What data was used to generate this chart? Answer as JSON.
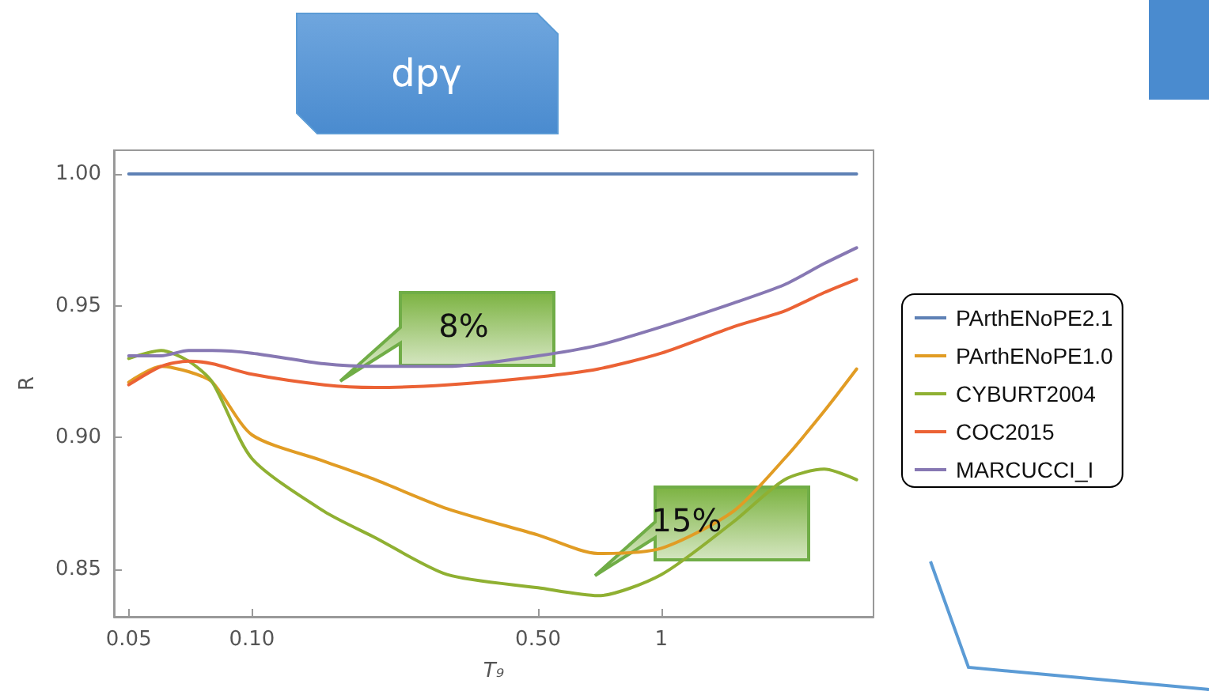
{
  "chart_data": {
    "type": "line",
    "title": "dpγ",
    "xlabel": "T₉",
    "ylabel": "R",
    "log": "x",
    "xlim": [
      0.046,
      3.3
    ],
    "xticks": [
      0.05,
      {
        "value": 0.1,
        "label": "0.10"
      },
      {
        "value": 0.5,
        "label": "0.50"
      },
      1
    ],
    "ylim": [
      0.832,
      1.009
    ],
    "yticks": [
      0.85,
      {
        "value": 0.9,
        "label": "0.90"
      },
      0.95,
      {
        "value": 1,
        "label": "1.00"
      }
    ],
    "x": [
      0.05,
      0.06,
      0.07,
      0.08,
      0.1,
      0.15,
      0.2,
      0.3,
      0.5,
      0.7,
      1,
      1.5,
      2,
      2.5,
      3
    ],
    "series": [
      {
        "name": "PArthENoPE2.1",
        "color": "#5e81b5",
        "values": [
          1,
          1,
          1,
          1,
          1,
          1,
          1,
          1,
          1,
          1,
          1,
          1,
          1,
          1,
          1
        ]
      },
      {
        "name": "PArthENoPE1.0",
        "color": "#e19c24",
        "values": [
          0.921,
          0.927,
          0.925,
          0.921,
          0.901,
          0.891,
          0.884,
          0.873,
          0.863,
          0.856,
          0.858,
          0.872,
          0.892,
          0.91,
          0.926
        ]
      },
      {
        "name": "CYBURT2004",
        "color": "#8fb032",
        "values": [
          0.93,
          0.933,
          0.929,
          0.921,
          0.892,
          0.872,
          0.862,
          0.848,
          0.843,
          0.84,
          0.848,
          0.868,
          0.884,
          0.888,
          0.884
        ]
      },
      {
        "name": "COC2015",
        "color": "#eb6235",
        "values": [
          0.92,
          0.927,
          0.929,
          0.928,
          0.924,
          0.92,
          0.919,
          0.92,
          0.923,
          0.926,
          0.932,
          0.942,
          0.948,
          0.955,
          0.96
        ]
      },
      {
        "name": "MARCUCCI_I",
        "color": "#8778b3",
        "values": [
          0.931,
          0.931,
          0.933,
          0.933,
          0.932,
          0.928,
          0.927,
          0.927,
          0.931,
          0.935,
          0.942,
          0.951,
          0.958,
          0.966,
          0.972
        ]
      }
    ],
    "annotations": [
      "8%",
      "15%"
    ],
    "legend": "right",
    "grid": false,
    "marker": "none",
    "line_style": "solid"
  }
}
